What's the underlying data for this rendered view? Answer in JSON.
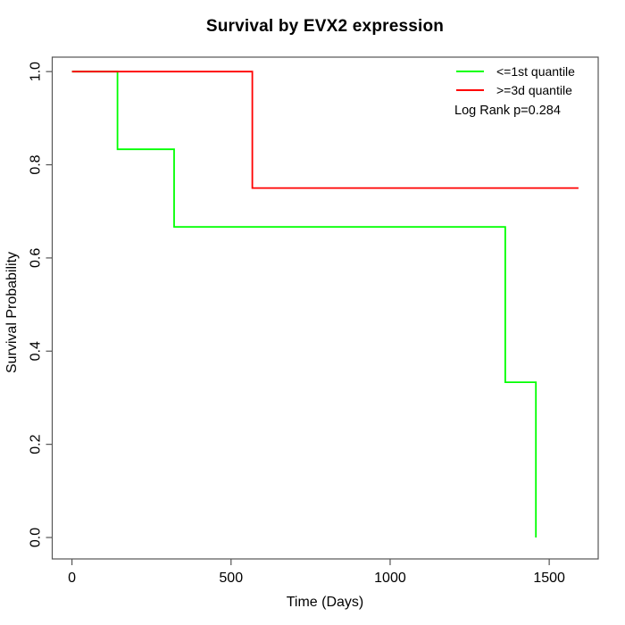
{
  "figure": {
    "title": "Survival by EVX2 expression",
    "x_axis_label": "Time (Days)",
    "y_axis_label": "Survival Probability",
    "annotation": "Log Rank p=0.284"
  },
  "legend": {
    "position": "top-right",
    "items": [
      {
        "label": "<=1st quantile",
        "color": "#00ff00"
      },
      {
        "label": ">=3d quantile",
        "color": "#ff0000"
      }
    ]
  },
  "chart_data": {
    "type": "line",
    "subtype": "kaplan-meier-step",
    "title": "Survival by EVX2 expression",
    "xlabel": "Time (Days)",
    "ylabel": "Survival Probability",
    "annotation": "Log Rank p=0.284",
    "grid": false,
    "legend_position": "top-right",
    "xlim": [
      -62,
      1654
    ],
    "ylim": [
      -0.046,
      1.031
    ],
    "x_ticks": [
      0,
      500,
      1000,
      1500
    ],
    "x_tick_labels": [
      "0",
      "500",
      "1000",
      "1500"
    ],
    "y_ticks": [
      0.0,
      0.2,
      0.4,
      0.6,
      0.8,
      1.0
    ],
    "y_tick_labels": [
      "0.0",
      "0.2",
      "0.4",
      "0.6",
      "0.8",
      "1.0"
    ],
    "axis_color": "#555555",
    "series": [
      {
        "name": "<=1st quantile",
        "color": "#00ff00",
        "event_times": [
          143,
          321,
          1362,
          1458
        ],
        "survival_after_event": [
          0.8333,
          0.6667,
          0.3333,
          0.0
        ],
        "step_points": [
          [
            0,
            1.0
          ],
          [
            143,
            1.0
          ],
          [
            143,
            0.8333
          ],
          [
            321,
            0.8333
          ],
          [
            321,
            0.6667
          ],
          [
            1362,
            0.6667
          ],
          [
            1362,
            0.3333
          ],
          [
            1458,
            0.3333
          ],
          [
            1458,
            0.0
          ]
        ]
      },
      {
        "name": ">=3d quantile",
        "color": "#ff0000",
        "event_times": [
          567
        ],
        "survival_after_event": [
          0.75
        ],
        "step_points": [
          [
            0,
            1.0
          ],
          [
            567,
            1.0
          ],
          [
            567,
            0.75
          ],
          [
            1592,
            0.75
          ]
        ]
      }
    ]
  }
}
